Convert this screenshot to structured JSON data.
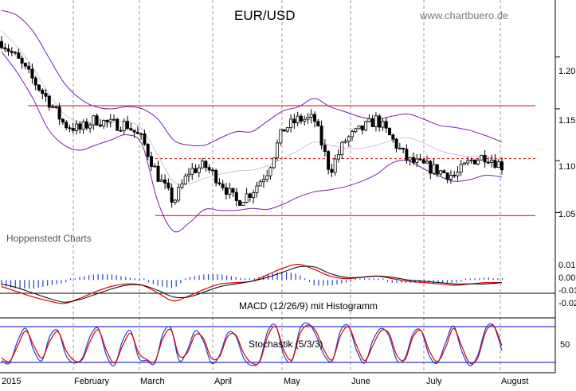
{
  "chart_data": {
    "type": "candlestick",
    "title": "EUR/USD",
    "source": "www.chartbuero.de",
    "provider": "Hoppenstedt Charts",
    "x_labels": [
      "2015",
      "February",
      "March",
      "April",
      "May",
      "June",
      "July",
      "August"
    ],
    "price_panel": {
      "y_ticks": [
        "1.20",
        "1.15",
        "1.10",
        "1.05"
      ],
      "ylim": [
        1.025,
        1.255
      ],
      "horizontal_lines": [
        {
          "value": 1.153,
          "style": "solid",
          "color": "#e00000"
        },
        {
          "value": 1.102,
          "style": "dashed",
          "color": "#e00000"
        },
        {
          "value": 1.047,
          "style": "solid",
          "color": "#e00000"
        }
      ],
      "bollinger": {
        "upper": [
          1.245,
          1.24,
          1.225,
          1.2,
          1.175,
          1.16,
          1.152,
          1.15,
          1.152,
          1.15,
          1.14,
          1.12,
          1.115,
          1.115,
          1.122,
          1.128,
          1.128,
          1.138,
          1.148,
          1.152,
          1.16,
          1.152,
          1.147,
          1.142,
          1.14,
          1.143,
          1.145,
          1.14,
          1.134,
          1.132,
          1.129,
          1.124,
          1.118
        ],
        "lower": [
          1.205,
          1.185,
          1.16,
          1.13,
          1.115,
          1.11,
          1.115,
          1.12,
          1.125,
          1.115,
          1.06,
          1.032,
          1.04,
          1.053,
          1.052,
          1.052,
          1.054,
          1.053,
          1.058,
          1.065,
          1.07,
          1.072,
          1.075,
          1.08,
          1.087,
          1.098,
          1.1,
          1.092,
          1.085,
          1.08,
          1.082,
          1.086,
          1.084
        ],
        "middle": [
          1.225,
          1.21,
          1.19,
          1.165,
          1.145,
          1.136,
          1.134,
          1.136,
          1.138,
          1.13,
          1.105,
          1.08,
          1.078,
          1.083,
          1.087,
          1.09,
          1.091,
          1.095,
          1.102,
          1.11,
          1.118,
          1.115,
          1.112,
          1.112,
          1.115,
          1.12,
          1.122,
          1.117,
          1.11,
          1.106,
          1.104,
          1.104,
          1.1
        ]
      },
      "close_anchors": [
        1.215,
        1.198,
        1.178,
        1.158,
        1.135,
        1.13,
        1.14,
        1.135,
        1.135,
        1.12,
        1.085,
        1.06,
        1.09,
        1.095,
        1.08,
        1.06,
        1.07,
        1.09,
        1.13,
        1.14,
        1.14,
        1.09,
        1.12,
        1.13,
        1.14,
        1.12,
        1.1,
        1.095,
        1.09,
        1.085,
        1.1,
        1.105,
        1.095
      ]
    },
    "macd_panel": {
      "caption": "MACD (12/26/9) mit Histogramm",
      "y_ticks": [
        "0.01",
        "0.00",
        "-0.01",
        "-0.02"
      ],
      "ylim": [
        -0.026,
        0.016
      ],
      "macd": [
        -0.005,
        -0.009,
        -0.013,
        -0.016,
        -0.018,
        -0.014,
        -0.009,
        -0.005,
        -0.003,
        -0.004,
        -0.01,
        -0.016,
        -0.012,
        -0.007,
        -0.003,
        -0.002,
        -0.001,
        0.004,
        0.009,
        0.012,
        0.008,
        0.003,
        0.001,
        0.002,
        0.003,
        0.001,
        -0.001,
        -0.002,
        -0.003,
        -0.004,
        -0.003,
        -0.002,
        -0.002
      ],
      "signal": [
        -0.003,
        -0.006,
        -0.01,
        -0.014,
        -0.017,
        -0.015,
        -0.011,
        -0.007,
        -0.004,
        -0.004,
        -0.008,
        -0.013,
        -0.013,
        -0.009,
        -0.005,
        -0.003,
        -0.001,
        0.002,
        0.006,
        0.01,
        0.01,
        0.005,
        0.002,
        0.002,
        0.003,
        0.002,
        0.0,
        -0.001,
        -0.002,
        -0.003,
        -0.003,
        -0.003,
        -0.002
      ]
    },
    "stochastic_panel": {
      "caption": "Stochastik (5/3/3)",
      "y_ticks": [
        "50"
      ],
      "levels": [
        80,
        20
      ],
      "ylim": [
        0,
        100
      ],
      "k": [
        20,
        15,
        60,
        85,
        40,
        20,
        70,
        80,
        30,
        15,
        25,
        70,
        85,
        30,
        10,
        60,
        80,
        25,
        20,
        15,
        75,
        85,
        20,
        40,
        80,
        60,
        15,
        30,
        75,
        70,
        25,
        10,
        20,
        80,
        90,
        30,
        20,
        85,
        95,
        70,
        30,
        20,
        80,
        90,
        40,
        15,
        60,
        85,
        70,
        20,
        25,
        75,
        80,
        30,
        15,
        55,
        90,
        40,
        10,
        30,
        85,
        90,
        40
      ],
      "d": [
        25,
        18,
        50,
        80,
        50,
        25,
        60,
        78,
        40,
        20,
        22,
        60,
        82,
        40,
        15,
        50,
        75,
        35,
        22,
        18,
        65,
        82,
        30,
        35,
        72,
        65,
        25,
        28,
        68,
        72,
        35,
        15,
        18,
        70,
        88,
        40,
        22,
        75,
        92,
        78,
        40,
        22,
        70,
        88,
        50,
        20,
        50,
        80,
        75,
        30,
        22,
        68,
        80,
        40,
        18,
        45,
        85,
        50,
        15,
        25,
        78,
        90,
        50
      ]
    }
  }
}
